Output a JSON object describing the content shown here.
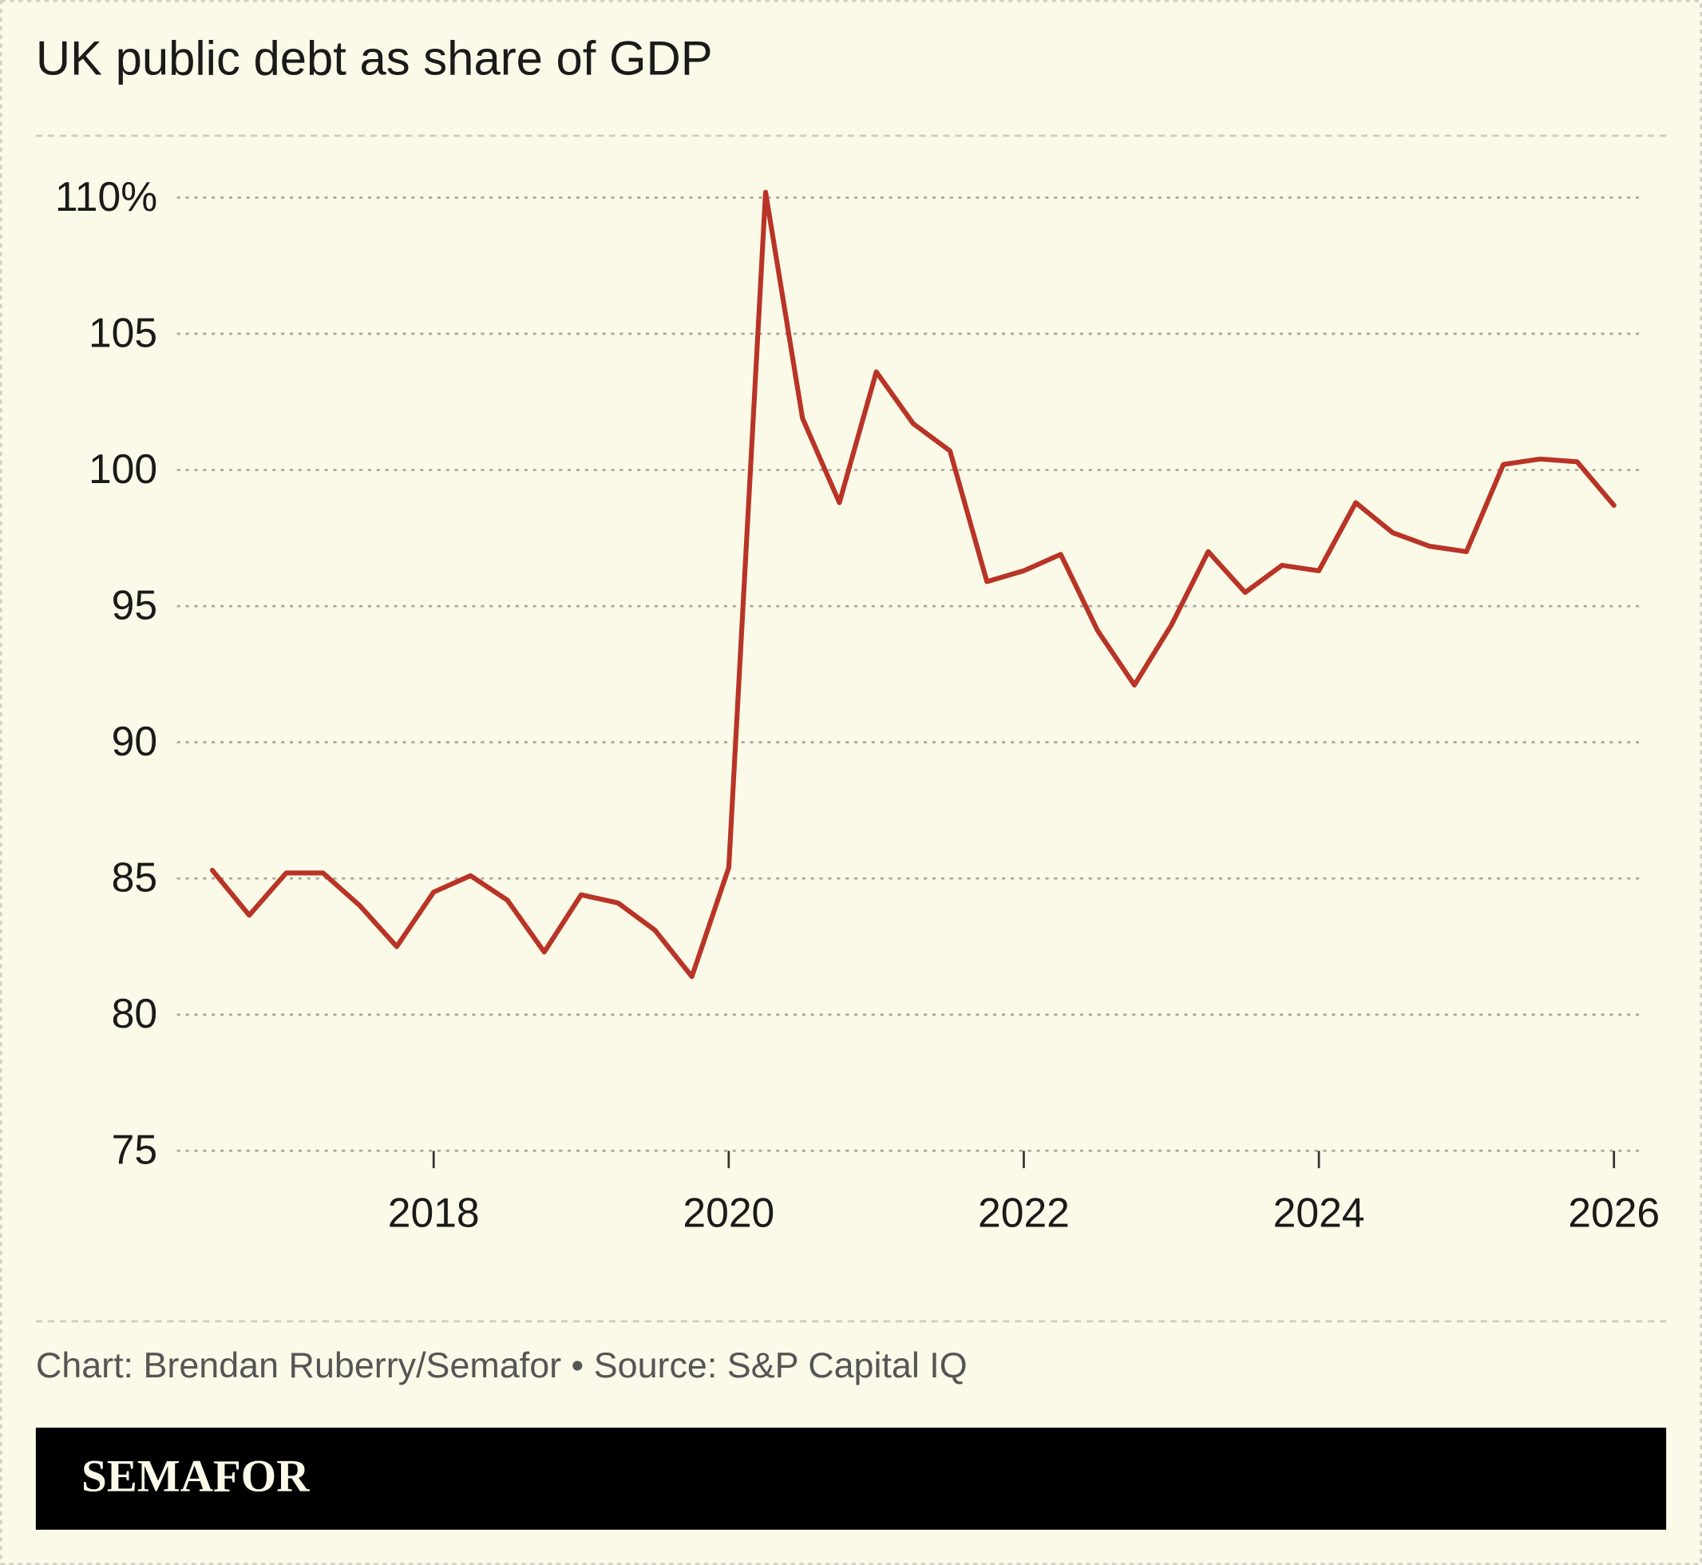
{
  "chart_data": {
    "type": "line",
    "title": "UK public debt as share of GDP",
    "x": [
      2016.5,
      2016.75,
      2017,
      2017.25,
      2017.5,
      2017.75,
      2018,
      2018.25,
      2018.5,
      2018.75,
      2019,
      2019.25,
      2019.5,
      2019.75,
      2020,
      2020.25,
      2020.5,
      2020.75,
      2021,
      2021.25,
      2021.5,
      2021.75,
      2022,
      2022.25,
      2022.5,
      2022.75,
      2023,
      2023.25,
      2023.5,
      2023.75,
      2024,
      2024.25,
      2024.5,
      2024.75,
      2025,
      2025.25,
      2025.5,
      2025.75,
      2026
    ],
    "values": [
      85.3,
      83.65,
      85.2,
      85.2,
      84.0,
      82.5,
      84.5,
      85.1,
      84.2,
      82.3,
      84.4,
      84.1,
      83.1,
      81.4,
      85.4,
      110.2,
      101.9,
      98.8,
      103.6,
      101.7,
      100.7,
      95.9,
      96.3,
      96.9,
      94.1,
      92.1,
      94.3,
      97.0,
      95.5,
      96.5,
      96.3,
      98.8,
      97.7,
      97.2,
      97.0,
      100.2,
      100.4,
      100.3,
      98.7
    ],
    "color": "#b83427",
    "xlim": [
      2016.26,
      2026.17
    ],
    "xticks": [
      2018,
      2020,
      2022,
      2024,
      2026
    ],
    "ylim": [
      75,
      110
    ],
    "yticks": [
      {
        "value": 110,
        "label": "110%"
      },
      105,
      100,
      95,
      90,
      85,
      80,
      75
    ],
    "grid": true,
    "source": "Chart: Brendan Ruberry/Semafor • Source: S&P Capital IQ",
    "brand": "SEMAFOR"
  }
}
